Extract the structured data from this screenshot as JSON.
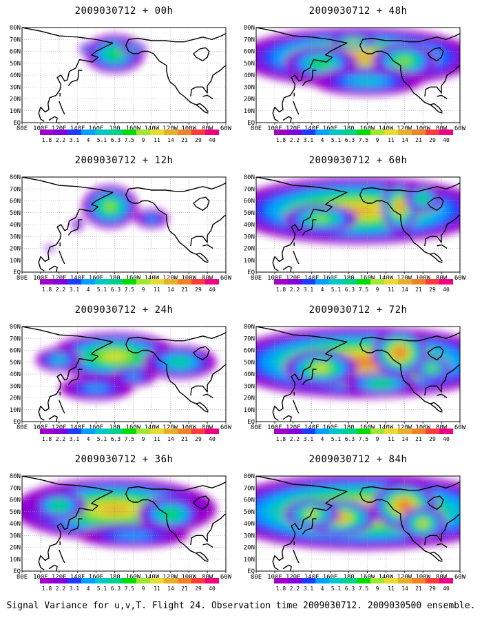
{
  "base_time": "2009030712",
  "panels": [
    {
      "title": "2009030712 + 00h",
      "lead": "00h",
      "intensity": 0.35,
      "blobs": [
        [
          180,
          58,
          32,
          16,
          6
        ],
        [
          200,
          62,
          14,
          6,
          4
        ],
        [
          150,
          62,
          8,
          5,
          3
        ]
      ]
    },
    {
      "title": "2009030712 + 12h",
      "lead": "12h",
      "intensity": 0.5,
      "blobs": [
        [
          175,
          55,
          30,
          18,
          7
        ],
        [
          140,
          40,
          6,
          5,
          2
        ],
        [
          220,
          45,
          18,
          8,
          3
        ],
        [
          110,
          20,
          4,
          3,
          2
        ]
      ]
    },
    {
      "title": "2009030712 + 24h",
      "lead": "24h",
      "intensity": 0.6,
      "blobs": [
        [
          180,
          55,
          70,
          20,
          8
        ],
        [
          120,
          52,
          25,
          10,
          4
        ],
        [
          250,
          50,
          40,
          14,
          5
        ],
        [
          160,
          28,
          40,
          10,
          3
        ],
        [
          200,
          38,
          25,
          8,
          3
        ]
      ]
    },
    {
      "title": "2009030712 + 36h",
      "lead": "36h",
      "intensity": 0.7,
      "blobs": [
        [
          180,
          52,
          110,
          26,
          9
        ],
        [
          120,
          55,
          30,
          12,
          6
        ],
        [
          240,
          48,
          35,
          15,
          6
        ],
        [
          200,
          30,
          60,
          10,
          3
        ]
      ]
    },
    {
      "title": "2009030712 + 48h",
      "lead": "48h",
      "intensity": 0.8,
      "blobs": [
        [
          190,
          55,
          130,
          25,
          9
        ],
        [
          185,
          68,
          25,
          6,
          8
        ],
        [
          150,
          50,
          40,
          14,
          6
        ],
        [
          240,
          52,
          35,
          15,
          7
        ],
        [
          200,
          35,
          60,
          12,
          4
        ]
      ]
    },
    {
      "title": "2009030712 + 60h",
      "lead": "60h",
      "intensity": 0.85,
      "blobs": [
        [
          190,
          52,
          140,
          28,
          9
        ],
        [
          235,
          55,
          20,
          22,
          10
        ],
        [
          150,
          45,
          40,
          12,
          7
        ],
        [
          260,
          62,
          20,
          12,
          6
        ]
      ]
    },
    {
      "title": "2009030712 + 72h",
      "lead": "72h",
      "intensity": 0.95,
      "blobs": [
        [
          195,
          50,
          150,
          30,
          10
        ],
        [
          235,
          58,
          30,
          20,
          11
        ],
        [
          150,
          45,
          40,
          15,
          8
        ],
        [
          215,
          32,
          40,
          10,
          6
        ],
        [
          270,
          45,
          20,
          10,
          7
        ]
      ]
    },
    {
      "title": "2009030712 + 84h",
      "lead": "84h",
      "intensity": 1.0,
      "blobs": [
        [
          195,
          50,
          160,
          32,
          10
        ],
        [
          170,
          45,
          40,
          15,
          10
        ],
        [
          240,
          55,
          35,
          20,
          11
        ],
        [
          140,
          48,
          30,
          12,
          8
        ],
        [
          260,
          40,
          25,
          14,
          8
        ]
      ]
    }
  ],
  "map": {
    "lon_labels": [
      "80E",
      "100E",
      "120E",
      "140E",
      "160E",
      "180",
      "160W",
      "140W",
      "120W",
      "100W",
      "80W",
      "60W"
    ],
    "lat_labels": [
      "EQ",
      "10N",
      "20N",
      "30N",
      "40N",
      "50N",
      "60N",
      "70N",
      "80N"
    ],
    "lon_range": [
      80,
      300
    ],
    "lat_range": [
      0,
      80
    ]
  },
  "colorbar": {
    "labels": [
      "1.8",
      "2.2",
      "3.1",
      "4",
      "5.1",
      "6.3",
      "7.5",
      "9",
      "11",
      "14",
      "21",
      "29",
      "40"
    ],
    "colors": [
      "#a000c8",
      "#8200dc",
      "#1e3cff",
      "#00a0ff",
      "#00c8c8",
      "#00d28c",
      "#00dc00",
      "#a0e632",
      "#e6dc32",
      "#e6af2d",
      "#f08228",
      "#fa3c3c",
      "#f00082"
    ]
  },
  "footer": "Signal Variance for u,v,T. Flight 24. Observation time 2009030712. 2009030500 ensemble."
}
